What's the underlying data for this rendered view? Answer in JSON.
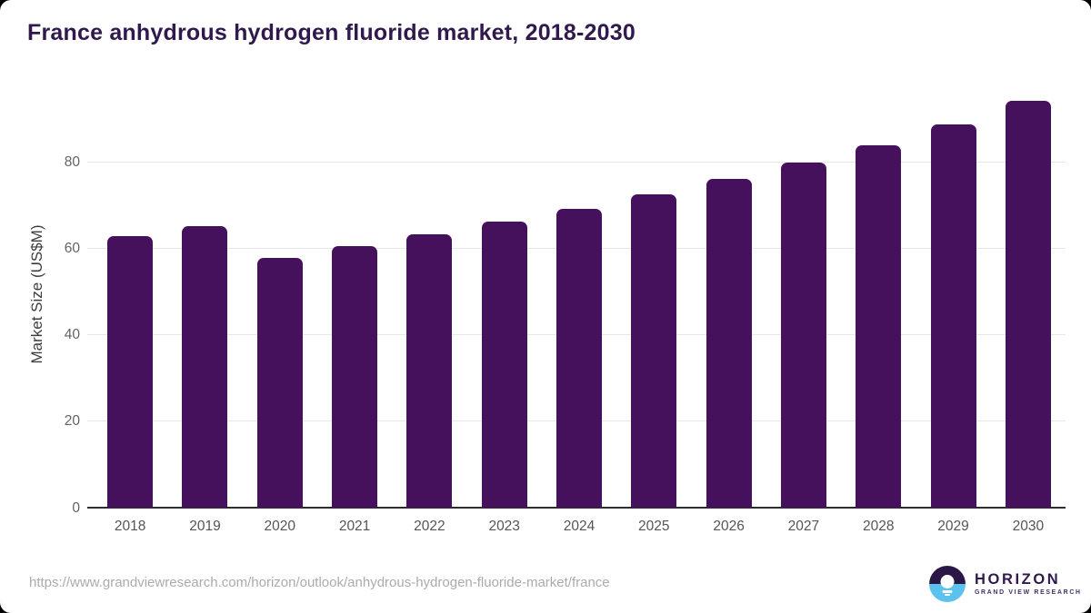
{
  "title": "France anhydrous hydrogen fluoride market, 2018-2030",
  "footer": {
    "source_url": "https://www.grandviewresearch.com/horizon/outlook/anhydrous-hydrogen-fluoride-market/france",
    "logo": {
      "icon": "horizon-sunset-icon",
      "brand": "HORIZON",
      "tagline": "GRAND VIEW RESEARCH"
    }
  },
  "colors": {
    "bar": "#46115c",
    "title_text": "#31194d",
    "tick_text": "#5a5a5a",
    "gridline": "#e8e8e8",
    "axis_line": "#2e2e2e",
    "footer_url_text": "#ababab",
    "logo_dark": "#2b1747",
    "logo_blue": "#5bc2ee"
  },
  "chart_data": {
    "type": "bar",
    "title": "France anhydrous hydrogen fluoride market, 2018-2030",
    "categories": [
      "2018",
      "2019",
      "2020",
      "2021",
      "2022",
      "2023",
      "2024",
      "2025",
      "2026",
      "2027",
      "2028",
      "2029",
      "2030"
    ],
    "values": [
      63.0,
      65.3,
      57.8,
      60.7,
      63.4,
      66.2,
      69.3,
      72.6,
      76.1,
      80.0,
      84.0,
      88.8,
      94.3
    ],
    "xlabel": "",
    "ylabel": "Market Size (US$M)",
    "ylim": [
      0,
      98.7
    ],
    "y_ticks": [
      0,
      20,
      40,
      60,
      80
    ],
    "grid": "horizontal",
    "legend": "none",
    "bar_color": "#46115c"
  }
}
